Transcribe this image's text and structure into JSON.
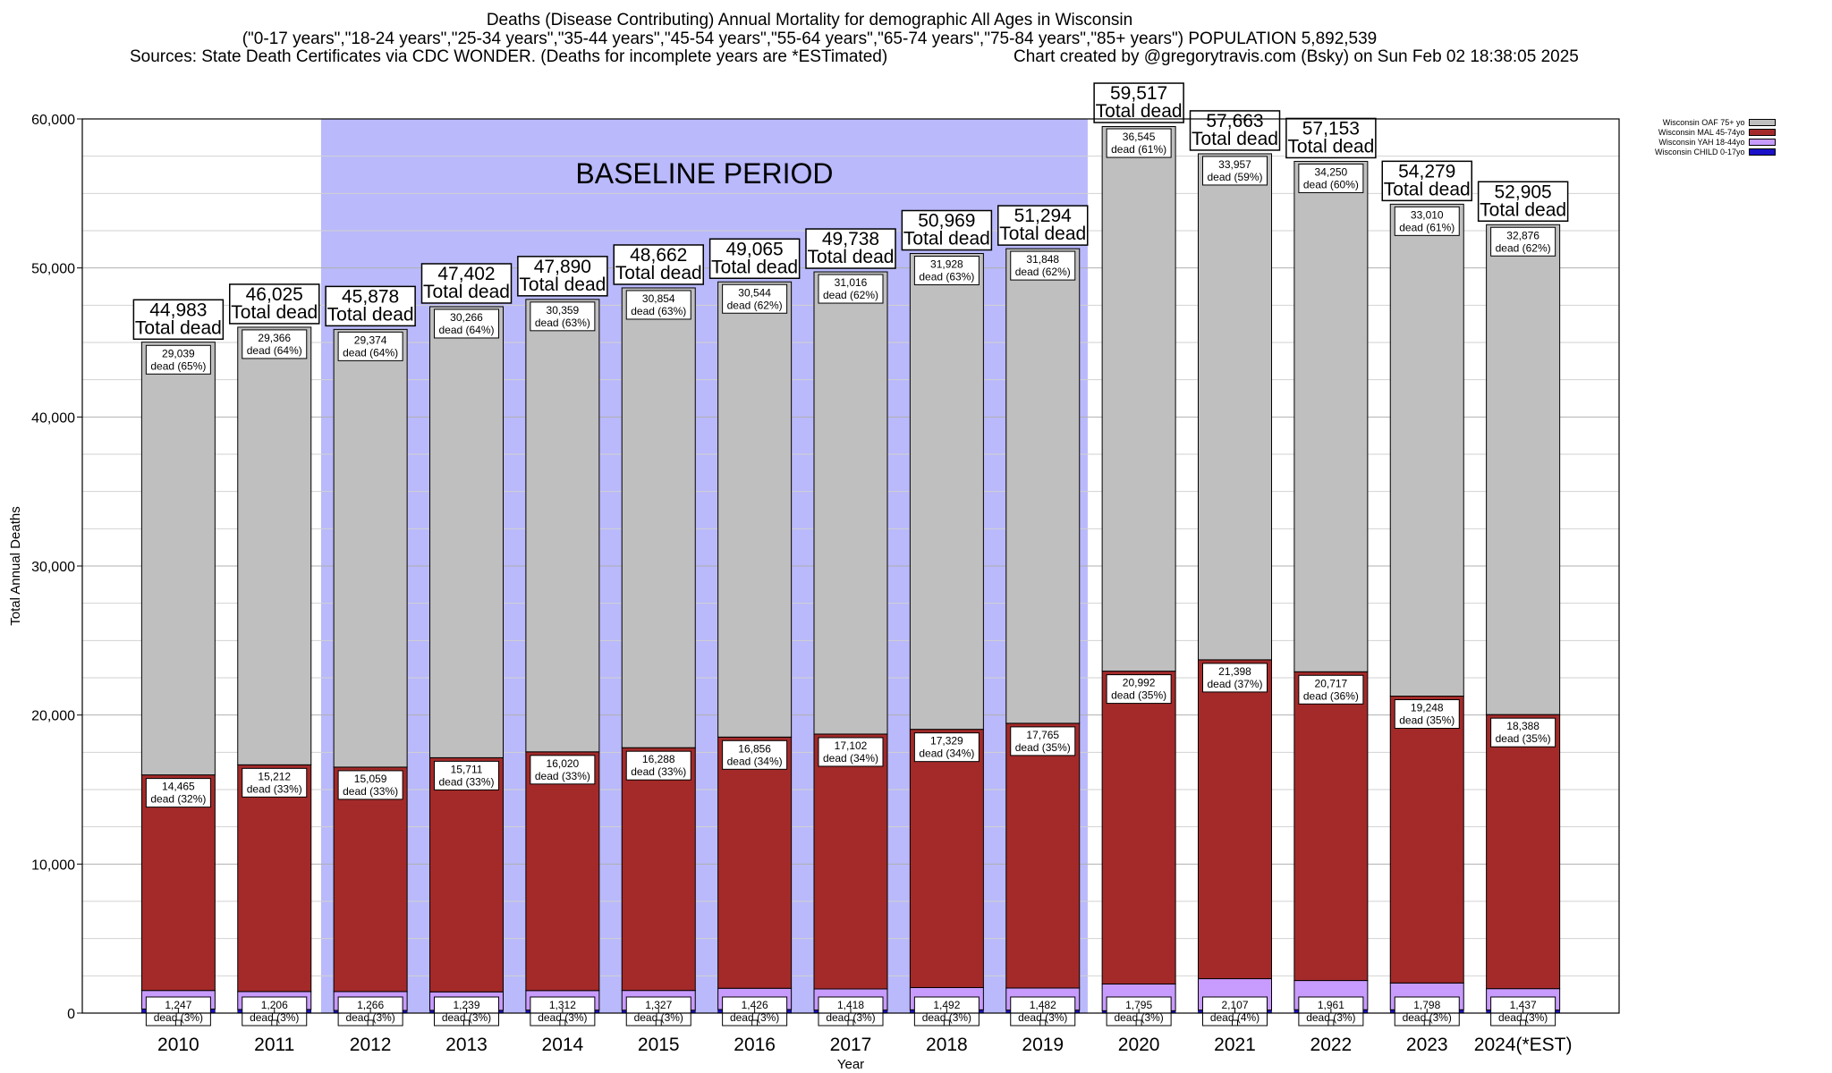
{
  "header": {
    "title": "Deaths (Disease Contributing) Annual Mortality for demographic All Ages in Wisconsin",
    "subtitle": "(\"0-17 years\",\"18-24 years\",\"25-34 years\",\"35-44 years\",\"45-54 years\",\"55-64 years\",\"65-74 years\",\"75-84 years\",\"85+ years\") POPULATION 5,892,539",
    "sources": "Sources: State Death Certificates via CDC WONDER. (Deaths for incomplete years are *ESTimated)",
    "credit": "Chart created by @gregorytravis.com (Bsky) on Sun Feb 02 18:38:05 2025"
  },
  "colors": {
    "oaf": "#bfbfbf",
    "mal": "#a42a2a",
    "yah": "#c89bff",
    "child": "#1a10c8",
    "baseline": "#b9b9fb"
  },
  "chart_data": {
    "type": "bar",
    "stacked": true,
    "xlabel": "Year",
    "ylabel": "Total Annual Deaths",
    "ylim": [
      0,
      60000
    ],
    "yticks": [
      "0",
      "10,000",
      "20,000",
      "30,000",
      "40,000",
      "50,000",
      "60,000"
    ],
    "grid": true,
    "legend_position": "top-right, outside plot",
    "baseline_label": "BASELINE PERIOD",
    "baseline_categories": [
      "2012",
      "2019"
    ],
    "total_suffix": "Total dead",
    "categories": [
      "2010",
      "2011",
      "2012",
      "2013",
      "2014",
      "2015",
      "2016",
      "2017",
      "2018",
      "2019",
      "2020",
      "2021",
      "2022",
      "2023",
      "2024(*EST)"
    ],
    "totals": [
      44983,
      46025,
      45878,
      47402,
      47890,
      48662,
      49065,
      49738,
      50969,
      51294,
      59517,
      57663,
      57153,
      54279,
      52905
    ],
    "totals_labels": [
      "44,983",
      "46,025",
      "45,878",
      "47,402",
      "47,890",
      "48,662",
      "49,065",
      "49,738",
      "50,969",
      "51,294",
      "59,517",
      "57,663",
      "57,153",
      "54,279",
      "52,905"
    ],
    "series": [
      {
        "name": "Wisconsin CHILD 0-17yo",
        "values": [
          271,
          241,
          179,
          186,
          199,
          193,
          239,
          202,
          220,
          199,
          158,
          201,
          225,
          223,
          204
        ]
      },
      {
        "name": "Wisconsin YAH 18-44yo",
        "values": [
          1247,
          1206,
          1266,
          1239,
          1312,
          1327,
          1426,
          1418,
          1492,
          1482,
          1795,
          2107,
          1961,
          1798,
          1437
        ],
        "labels": [
          "1,247",
          "1,206",
          "1,266",
          "1,239",
          "1,312",
          "1,327",
          "1,426",
          "1,418",
          "1,492",
          "1,482",
          "1,795",
          "2,107",
          "1,961",
          "1,798",
          "1,437"
        ],
        "label_pct": [
          "dead (3%)",
          "dead (3%)",
          "dead (3%)",
          "dead (3%)",
          "dead (3%)",
          "dead (3%)",
          "dead (3%)",
          "dead (3%)",
          "dead (3%)",
          "dead (3%)",
          "dead (3%)",
          "dead (4%)",
          "dead (3%)",
          "dead (3%)",
          "dead (3%)"
        ]
      },
      {
        "name": "Wisconsin MAL 45-74yo",
        "values": [
          14465,
          15212,
          15059,
          15711,
          16020,
          16288,
          16856,
          17102,
          17329,
          17765,
          20992,
          21398,
          20717,
          19248,
          18388
        ],
        "labels": [
          "14,465",
          "15,212",
          "15,059",
          "15,711",
          "16,020",
          "16,288",
          "16,856",
          "17,102",
          "17,329",
          "17,765",
          "20,992",
          "21,398",
          "20,717",
          "19,248",
          "18,388"
        ],
        "label_pct": [
          "dead (32%)",
          "dead (33%)",
          "dead (33%)",
          "dead (33%)",
          "dead (33%)",
          "dead (33%)",
          "dead (34%)",
          "dead (34%)",
          "dead (34%)",
          "dead (35%)",
          "dead (35%)",
          "dead (37%)",
          "dead (36%)",
          "dead (35%)",
          "dead (35%)"
        ]
      },
      {
        "name": "Wisconsin OAF 75+ yo",
        "values": [
          29039,
          29366,
          29374,
          30266,
          30359,
          30854,
          30544,
          31016,
          31928,
          31848,
          36545,
          33957,
          34250,
          33010,
          32876
        ],
        "labels": [
          "29,039",
          "29,366",
          "29,374",
          "30,266",
          "30,359",
          "30,854",
          "30,544",
          "31,016",
          "31,928",
          "31,848",
          "36,545",
          "33,957",
          "34,250",
          "33,010",
          "32,876"
        ],
        "label_pct": [
          "dead (65%)",
          "dead (64%)",
          "dead (64%)",
          "dead (64%)",
          "dead (63%)",
          "dead (63%)",
          "dead (62%)",
          "dead (62%)",
          "dead (63%)",
          "dead (62%)",
          "dead (61%)",
          "dead (59%)",
          "dead (60%)",
          "dead (61%)",
          "dead (62%)"
        ]
      }
    ]
  }
}
